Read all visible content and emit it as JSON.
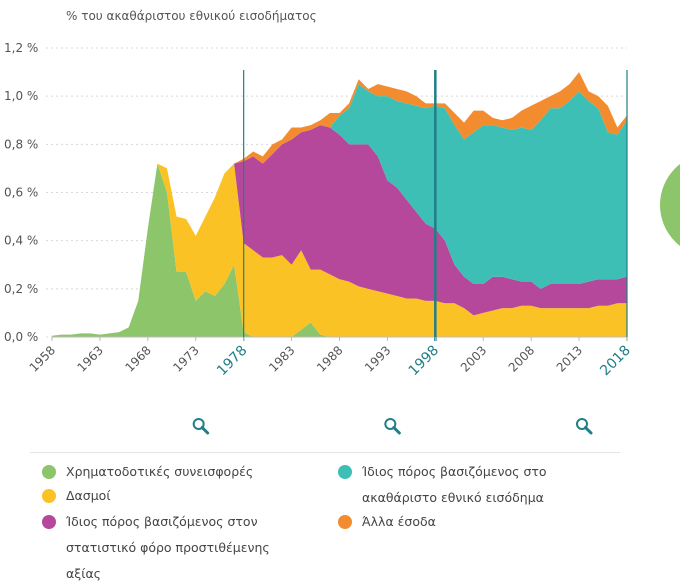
{
  "chart_data": {
    "type": "area",
    "stacked": true,
    "y_axis_title": "% του ακαθάριστου εθνικού εισοδήματος",
    "x": [
      1958,
      1959,
      1960,
      1961,
      1962,
      1963,
      1964,
      1965,
      1966,
      1967,
      1968,
      1969,
      1970,
      1971,
      1972,
      1973,
      1974,
      1975,
      1976,
      1977,
      1978,
      1979,
      1980,
      1981,
      1982,
      1983,
      1984,
      1985,
      1986,
      1987,
      1988,
      1989,
      1990,
      1991,
      1992,
      1993,
      1994,
      1995,
      1996,
      1997,
      1998,
      1999,
      2000,
      2001,
      2002,
      2003,
      2004,
      2005,
      2006,
      2007,
      2008,
      2009,
      2010,
      2011,
      2012,
      2013,
      2014,
      2015,
      2016,
      2017,
      2018
    ],
    "series": [
      {
        "name": "Χρηματοδοτικές συνεισφορές",
        "color": "#8cc56a",
        "values": [
          0.005,
          0.01,
          0.01,
          0.015,
          0.015,
          0.01,
          0.015,
          0.02,
          0.04,
          0.15,
          0.45,
          0.72,
          0.6,
          0.27,
          0.27,
          0.15,
          0.19,
          0.17,
          0.22,
          0.3,
          0.02,
          0,
          0,
          0,
          0,
          0,
          0.03,
          0.06,
          0.01,
          0,
          0,
          0,
          0,
          0,
          0,
          0,
          0,
          0,
          0,
          0,
          0,
          0,
          0,
          0,
          0,
          0,
          0,
          0,
          0,
          0,
          0,
          0,
          0,
          0,
          0,
          0,
          0,
          0,
          0,
          0,
          0
        ]
      },
      {
        "name": "Δασμοί",
        "color": "#fbc226",
        "values": [
          0,
          0,
          0,
          0,
          0,
          0,
          0,
          0,
          0,
          0,
          0,
          0,
          0.1,
          0.23,
          0.22,
          0.27,
          0.31,
          0.41,
          0.46,
          0.42,
          0.37,
          0.36,
          0.33,
          0.33,
          0.34,
          0.3,
          0.33,
          0.22,
          0.27,
          0.26,
          0.24,
          0.23,
          0.21,
          0.2,
          0.19,
          0.18,
          0.17,
          0.16,
          0.16,
          0.15,
          0.15,
          0.14,
          0.14,
          0.12,
          0.09,
          0.1,
          0.11,
          0.12,
          0.12,
          0.13,
          0.13,
          0.12,
          0.12,
          0.12,
          0.12,
          0.12,
          0.12,
          0.13,
          0.13,
          0.14,
          0.14
        ]
      },
      {
        "name": "Ίδιος πόρος βασιζόμενος στον στατιστικό φόρο προστιθέμενης αξίας",
        "color": "#b5489a",
        "values": [
          0,
          0,
          0,
          0,
          0,
          0,
          0,
          0,
          0,
          0,
          0,
          0,
          0,
          0,
          0,
          0,
          0,
          0,
          0,
          0,
          0.34,
          0.39,
          0.39,
          0.43,
          0.46,
          0.52,
          0.49,
          0.58,
          0.6,
          0.61,
          0.6,
          0.57,
          0.59,
          0.6,
          0.56,
          0.47,
          0.45,
          0.41,
          0.36,
          0.32,
          0.3,
          0.26,
          0.16,
          0.13,
          0.13,
          0.12,
          0.14,
          0.13,
          0.12,
          0.1,
          0.1,
          0.08,
          0.1,
          0.1,
          0.1,
          0.1,
          0.11,
          0.11,
          0.11,
          0.1,
          0.11
        ]
      },
      {
        "name": "Ίδιος πόρος βασιζόμενος στο ακαθάριστο εθνικό εισόδημα",
        "color": "#3dbfb5",
        "values": [
          0,
          0,
          0,
          0,
          0,
          0,
          0,
          0,
          0,
          0,
          0,
          0,
          0,
          0,
          0,
          0,
          0,
          0,
          0,
          0,
          0,
          0,
          0,
          0,
          0,
          0,
          0,
          0,
          0,
          0,
          0.08,
          0.15,
          0.25,
          0.22,
          0.25,
          0.35,
          0.36,
          0.4,
          0.44,
          0.48,
          0.51,
          0.55,
          0.58,
          0.57,
          0.63,
          0.66,
          0.63,
          0.62,
          0.62,
          0.64,
          0.63,
          0.7,
          0.73,
          0.73,
          0.76,
          0.8,
          0.75,
          0.71,
          0.61,
          0.6,
          0.65
        ]
      },
      {
        "name": "Άλλα έσοδα",
        "color": "#f28c2e",
        "values": [
          0,
          0,
          0,
          0,
          0,
          0,
          0,
          0,
          0,
          0,
          0,
          0,
          0,
          0,
          0,
          0,
          0,
          0,
          0,
          0,
          0.01,
          0.02,
          0.03,
          0.04,
          0.02,
          0.05,
          0.02,
          0.02,
          0.02,
          0.06,
          0.01,
          0.02,
          0.02,
          0.01,
          0.05,
          0.04,
          0.05,
          0.05,
          0.04,
          0.02,
          0.01,
          0.02,
          0.05,
          0.07,
          0.09,
          0.06,
          0.03,
          0.03,
          0.05,
          0.07,
          0.1,
          0.08,
          0.05,
          0.07,
          0.07,
          0.08,
          0.04,
          0.05,
          0.11,
          0.03,
          0.02
        ]
      }
    ],
    "xlim": [
      1958,
      2018
    ],
    "xticks": [
      1958,
      1963,
      1968,
      1973,
      1978,
      1983,
      1988,
      1993,
      1998,
      2003,
      2008,
      2013,
      2018
    ],
    "highlight": [
      1978,
      1998,
      2018
    ],
    "ylim": [
      0,
      1.2
    ],
    "yticks": [
      {
        "value": 0,
        "label": "0,0 %"
      },
      {
        "value": 0.2,
        "label": "0,2 %"
      },
      {
        "value": 0.4,
        "label": "0,4 %"
      },
      {
        "value": 0.6,
        "label": "0,6 %"
      },
      {
        "value": 0.8,
        "label": "0,8 %"
      },
      {
        "value": 1.0,
        "label": "1,0 %"
      },
      {
        "value": 1.2,
        "label": "1,2 %"
      }
    ],
    "grid": true
  }
}
